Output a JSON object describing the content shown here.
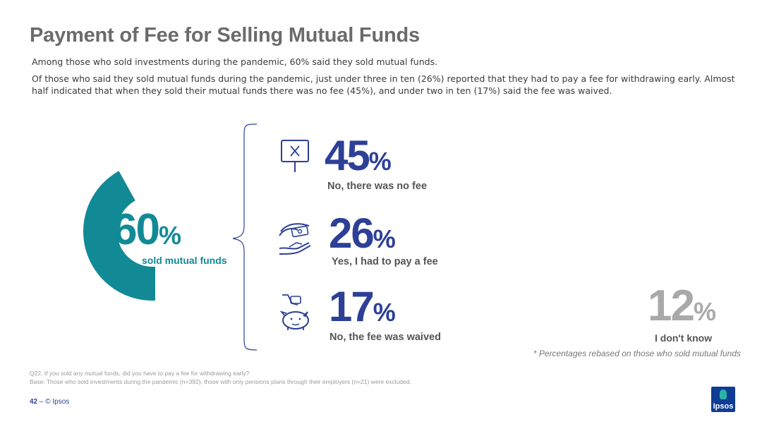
{
  "page": {
    "title": "Payment of Fee for Selling Mutual Funds",
    "intro_1": "Among those who sold investments during the pandemic, 60% said they sold mutual funds.",
    "intro_2": "Of those who said they sold mutual funds during the pandemic, just under three in ten (26%) reported that they had to pay a fee for withdrawing early.  Almost half indicated that when they sold their mutual funds there was no fee (45%), and under two in ten (17%) said the fee was waived."
  },
  "colors": {
    "teal": "#128a96",
    "navy": "#2d3f96",
    "grey": "#a9a9a9"
  },
  "chart_data": {
    "type": "pie",
    "headline": {
      "value": 60,
      "value_text": "60",
      "unit": "%",
      "label": "sold mutual funds"
    },
    "categories": [
      "No, there was no fee",
      "Yes, I had to pay a fee",
      "No, the fee was waived",
      "I don't know"
    ],
    "values": [
      45,
      26,
      17,
      12
    ],
    "value_texts": [
      "45",
      "26",
      "17",
      "12"
    ],
    "unit": "%",
    "icons": [
      "sign-x-icon",
      "hand-money-icon",
      "piggy-bank-icon"
    ]
  },
  "footnote": "* Percentages rebased on those who sold mutual funds",
  "notes": {
    "question": "Q22. If you sold any mutual funds, did you have to pay a fee for withdrawing early?",
    "base": "Base: Those who sold investments during the pandemic (n=392), those with only pensions plans through their employers (n=21) were excluded."
  },
  "footer": {
    "page_number": "42",
    "separator": " – ",
    "copyright": "© Ipsos"
  },
  "logo": {
    "text": "Ipsos"
  }
}
